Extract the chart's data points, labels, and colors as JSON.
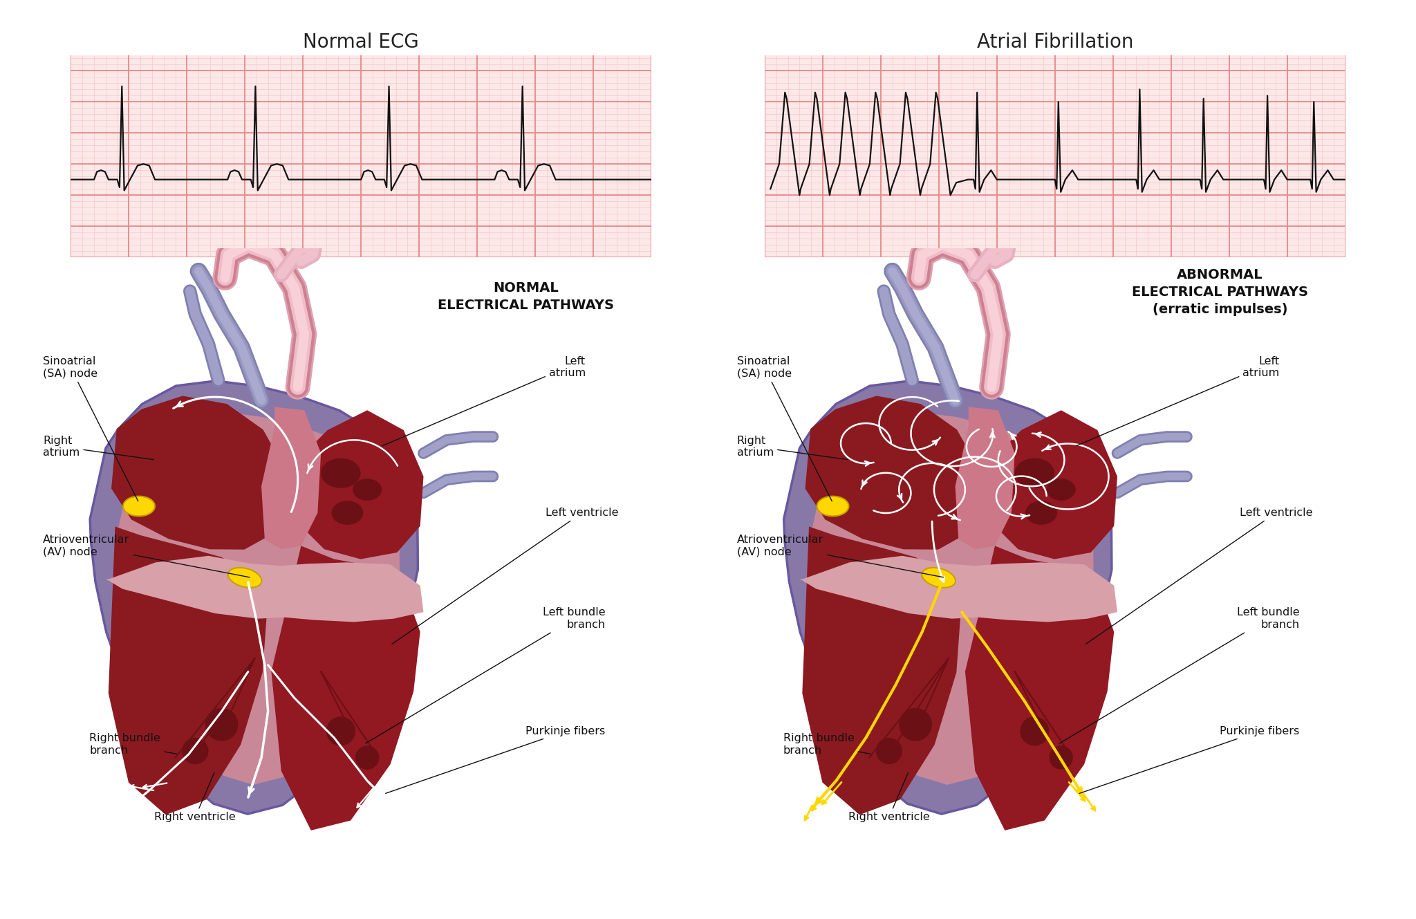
{
  "background_color": "#ffffff",
  "title_left": "Normal ECG",
  "title_right": "Atrial Fibrillation",
  "title_fontsize": 20,
  "ecg_grid_major_color": "#e88888",
  "ecg_grid_minor_color": "#f5c8c8",
  "ecg_bg_color": "#fce8e8",
  "ecg_line_color": "#111111",
  "heading_left": "NORMAL\nELECTRICAL PATHWAYS",
  "heading_right": "ABNORMAL\nELECTRICAL PATHWAYS\n(erratic impulses)",
  "heading_fontsize": 14,
  "label_fontsize": 11.5,
  "heart_outer_color": "#8878a8",
  "heart_outer_edge": "#6858a0",
  "heart_myocardium": "#c88898",
  "heart_chamber_dark": "#8b1a20",
  "heart_chamber_mid": "#a02030",
  "heart_sep_color": "#c87880",
  "heart_valve_color": "#d8a0a8",
  "aorta_outer": "#e8b0c0",
  "aorta_mid": "#d89098",
  "aorta_inner": "#f0c0c8",
  "pulm_outer": "#8888b8",
  "pulm_inner": "#a0a0c8",
  "sa_color": "#ffd700",
  "sa_edge": "#c8a000",
  "av_color": "#ffd700",
  "av_edge": "#c8a000",
  "white_arrow": "#ffffff",
  "yellow_arrow": "#ffd700",
  "label_color": "#111111",
  "arrow_color": "#111111"
}
